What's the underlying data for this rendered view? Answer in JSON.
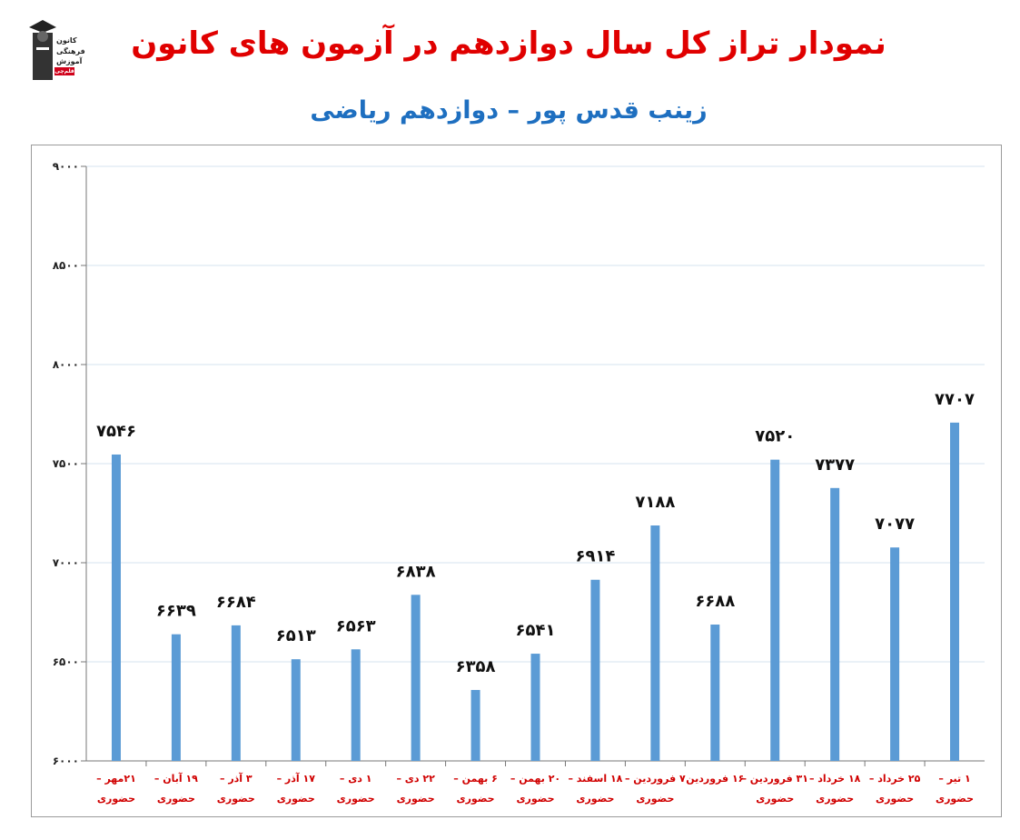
{
  "header": {
    "title": "نمودار تراز کل سال دوازدهم در آزمون های کانون",
    "subtitle": "زینب قدس پور – دوازدهم ریاضی"
  },
  "logo": {
    "line1": "کانون",
    "line2": "فرهنگی",
    "line3": "آموزش",
    "badge": "قلم‌چی"
  },
  "colors": {
    "bar": "#5b9bd5",
    "grid": "#d6e3ef",
    "title": "#e00000",
    "subtitle": "#1e6fc0",
    "category": "#d00000"
  },
  "chart_data": {
    "type": "bar",
    "title": "نمودار تراز کل سال دوازدهم در آزمون های کانون",
    "subtitle": "زینب قدس پور – دوازدهم ریاضی",
    "ylim": [
      6000,
      9000
    ],
    "yticks": [
      6000,
      6500,
      7000,
      7500,
      8000,
      8500,
      9000
    ],
    "ytick_labels": [
      "۶۰۰۰",
      "۶۵۰۰",
      "۷۰۰۰",
      "۷۵۰۰",
      "۸۰۰۰",
      "۸۵۰۰",
      "۹۰۰۰"
    ],
    "grid": true,
    "legend": "none",
    "categories": [
      [
        "۲۱مهر –",
        "حضوری"
      ],
      [
        "۱۹ آبان –",
        "حضوری"
      ],
      [
        "۳ آذر –",
        "حضوری"
      ],
      [
        "۱۷ آذر –",
        "حضوری"
      ],
      [
        "۱ دی –",
        "حضوری"
      ],
      [
        "۲۲ دی –",
        "حضوری"
      ],
      [
        "۶ بهمن –",
        "حضوری"
      ],
      [
        "۲۰ بهمن –",
        "حضوری"
      ],
      [
        "۱۸ اسفند –",
        "حضوری"
      ],
      [
        "۷ فروردین –",
        "حضوری"
      ],
      [
        "۱۶ فروردین",
        ""
      ],
      [
        "۳۱ فروردین –",
        "حضوری"
      ],
      [
        "۱۸ خرداد –",
        "حضوری"
      ],
      [
        "۲۵ خرداد –",
        "حضوری"
      ],
      [
        "۱ تیر –",
        "حضوری"
      ]
    ],
    "values": [
      7546,
      6639,
      6684,
      6513,
      6563,
      6838,
      6358,
      6541,
      6914,
      7188,
      6688,
      7520,
      7377,
      7077,
      7707
    ],
    "value_labels": [
      "۷۵۴۶",
      "۶۶۳۹",
      "۶۶۸۴",
      "۶۵۱۳",
      "۶۵۶۳",
      "۶۸۳۸",
      "۶۳۵۸",
      "۶۵۴۱",
      "۶۹۱۴",
      "۷۱۸۸",
      "۶۶۸۸",
      "۷۵۲۰",
      "۷۳۷۷",
      "۷۰۷۷",
      "۷۷۰۷"
    ]
  }
}
